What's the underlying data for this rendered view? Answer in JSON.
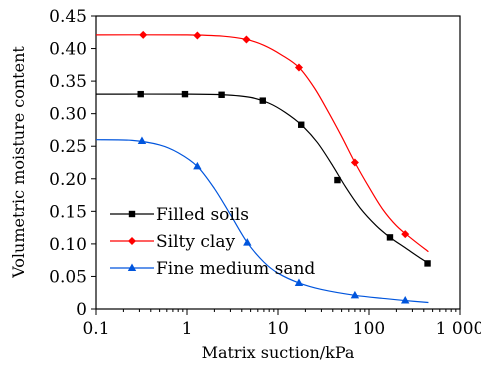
{
  "chart_data": {
    "type": "line",
    "title": "",
    "xlabel": "Matrix suction/kPa",
    "ylabel": "Volumetric moisture content",
    "x_scale": "log",
    "xlim": [
      0.1,
      1000
    ],
    "ylim": [
      0,
      0.45
    ],
    "x_ticks": [
      0.1,
      1,
      10,
      100,
      1000
    ],
    "x_tick_labels": [
      "0.1",
      "1",
      "10",
      "100",
      "1 000"
    ],
    "y_ticks": [
      0,
      0.05,
      0.1,
      0.15,
      0.2,
      0.25,
      0.3,
      0.35,
      0.4,
      0.45
    ],
    "y_tick_labels": [
      "0",
      "0.05",
      "0.10",
      "0.15",
      "0.20",
      "0.25",
      "0.30",
      "0.35",
      "0.40",
      "0.45"
    ],
    "grid": false,
    "legend_position": "lower-left",
    "series": [
      {
        "name": "Filled soils",
        "color": "#000000",
        "marker": "square",
        "points": [
          [
            0.31,
            0.33
          ],
          [
            0.95,
            0.33
          ],
          [
            2.4,
            0.329
          ],
          [
            6.8,
            0.32
          ],
          [
            18,
            0.283
          ],
          [
            45,
            0.198
          ],
          [
            170,
            0.11
          ],
          [
            440,
            0.07
          ]
        ],
        "curve": [
          [
            0.1,
            0.33
          ],
          [
            1,
            0.33
          ],
          [
            2.5,
            0.329
          ],
          [
            5,
            0.325
          ],
          [
            8,
            0.316
          ],
          [
            12,
            0.302
          ],
          [
            18,
            0.283
          ],
          [
            27,
            0.256
          ],
          [
            40,
            0.22
          ],
          [
            55,
            0.188
          ],
          [
            80,
            0.155
          ],
          [
            120,
            0.128
          ],
          [
            170,
            0.11
          ],
          [
            250,
            0.094
          ],
          [
            350,
            0.08
          ],
          [
            440,
            0.071
          ]
        ]
      },
      {
        "name": "Silty clay",
        "color": "#ff0000",
        "marker": "diamond",
        "points": [
          [
            0.33,
            0.421
          ],
          [
            1.3,
            0.42
          ],
          [
            4.5,
            0.414
          ],
          [
            17,
            0.371
          ],
          [
            70,
            0.225
          ],
          [
            250,
            0.115
          ]
        ],
        "curve": [
          [
            0.1,
            0.421
          ],
          [
            1,
            0.421
          ],
          [
            2.5,
            0.419
          ],
          [
            4.5,
            0.414
          ],
          [
            7,
            0.405
          ],
          [
            11,
            0.39
          ],
          [
            17,
            0.371
          ],
          [
            25,
            0.34
          ],
          [
            35,
            0.305
          ],
          [
            50,
            0.265
          ],
          [
            70,
            0.225
          ],
          [
            100,
            0.187
          ],
          [
            140,
            0.154
          ],
          [
            200,
            0.128
          ],
          [
            300,
            0.107
          ],
          [
            450,
            0.088
          ]
        ]
      },
      {
        "name": "Fine medium sand",
        "color": "#0055dd",
        "marker": "triangle",
        "points": [
          [
            0.32,
            0.258
          ],
          [
            1.3,
            0.219
          ],
          [
            4.6,
            0.102
          ],
          [
            17,
            0.04
          ],
          [
            70,
            0.021
          ],
          [
            250,
            0.013
          ]
        ],
        "curve": [
          [
            0.1,
            0.26
          ],
          [
            0.25,
            0.259
          ],
          [
            0.5,
            0.252
          ],
          [
            0.8,
            0.24
          ],
          [
            1.3,
            0.219
          ],
          [
            2,
            0.185
          ],
          [
            3,
            0.145
          ],
          [
            4.6,
            0.102
          ],
          [
            7,
            0.072
          ],
          [
            10,
            0.055
          ],
          [
            17,
            0.04
          ],
          [
            30,
            0.03
          ],
          [
            70,
            0.021
          ],
          [
            150,
            0.016
          ],
          [
            250,
            0.013
          ],
          [
            450,
            0.01
          ]
        ]
      }
    ]
  }
}
